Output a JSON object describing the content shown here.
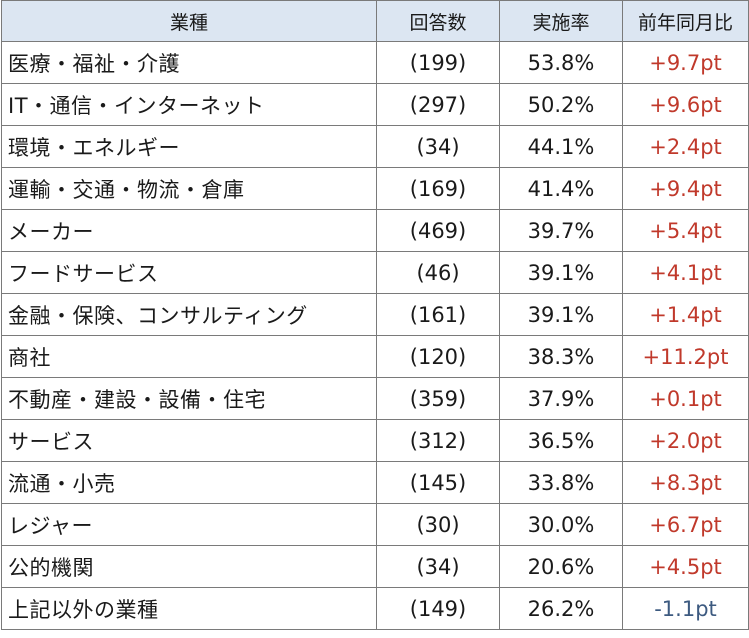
{
  "headers": [
    "業種",
    "回答数",
    "実施率",
    "前年同月比"
  ],
  "rows": [
    {
      "industry": "医療・福祉・介護",
      "count": "(199)",
      "rate": "53.8%",
      "yoy": "+9.7pt",
      "trend": "up"
    },
    {
      "industry": "IT・通信・インターネット",
      "count": "(297)",
      "rate": "50.2%",
      "yoy": "+9.6pt",
      "trend": "up"
    },
    {
      "industry": "環境・エネルギー",
      "count": "(34)",
      "rate": "44.1%",
      "yoy": "+2.4pt",
      "trend": "up"
    },
    {
      "industry": "運輸・交通・物流・倉庫",
      "count": "(169)",
      "rate": "41.4%",
      "yoy": "+9.4pt",
      "trend": "up"
    },
    {
      "industry": "メーカー",
      "count": "(469)",
      "rate": "39.7%",
      "yoy": "+5.4pt",
      "trend": "up"
    },
    {
      "industry": "フードサービス",
      "count": "(46)",
      "rate": "39.1%",
      "yoy": "+4.1pt",
      "trend": "up"
    },
    {
      "industry": "金融・保険、コンサルティング",
      "count": "(161)",
      "rate": "39.1%",
      "yoy": "+1.4pt",
      "trend": "up"
    },
    {
      "industry": "商社",
      "count": "(120)",
      "rate": "38.3%",
      "yoy": "+11.2pt",
      "trend": "up"
    },
    {
      "industry": "不動産・建設・設備・住宅",
      "count": "(359)",
      "rate": "37.9%",
      "yoy": "+0.1pt",
      "trend": "up"
    },
    {
      "industry": "サービス",
      "count": "(312)",
      "rate": "36.5%",
      "yoy": "+2.0pt",
      "trend": "up"
    },
    {
      "industry": "流通・小売",
      "count": "(145)",
      "rate": "33.8%",
      "yoy": "+8.3pt",
      "trend": "up"
    },
    {
      "industry": "レジャー",
      "count": "(30)",
      "rate": "30.0%",
      "yoy": "+6.7pt",
      "trend": "up"
    },
    {
      "industry": "公的機関",
      "count": "(34)",
      "rate": "20.6%",
      "yoy": "+4.5pt",
      "trend": "up"
    },
    {
      "industry": "上記以外の業種",
      "count": "(149)",
      "rate": "26.2%",
      "yoy": "-1.1pt",
      "trend": "down"
    }
  ],
  "colors": {
    "header_bg": "#dce6f2",
    "positive": "#c0392b",
    "negative": "#3d5a80",
    "border": "#7a7a7a"
  }
}
